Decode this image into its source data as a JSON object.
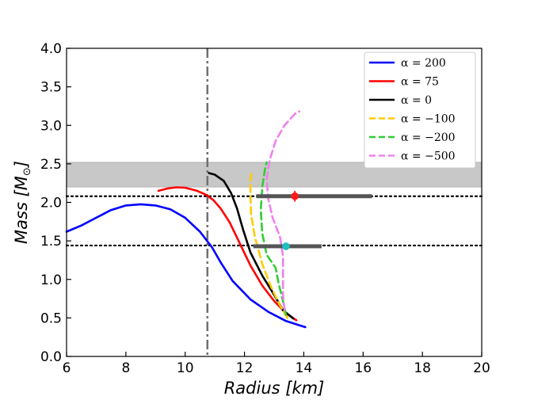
{
  "chart_data": {
    "type": "line",
    "title": "",
    "xlabel": "Radius [km]",
    "ylabel": "Mass [M",
    "ylabel_sub": "⊙",
    "ylabel_close": "]",
    "xlim": [
      6,
      20
    ],
    "ylim": [
      0.0,
      4.0
    ],
    "x_ticks": [
      6,
      8,
      10,
      12,
      14,
      16,
      18,
      20
    ],
    "y_ticks": [
      0.0,
      0.5,
      1.0,
      1.5,
      2.0,
      2.5,
      3.0,
      3.5,
      4.0
    ],
    "x_tick_labels": [
      "6",
      "8",
      "10",
      "12",
      "14",
      "16",
      "18",
      "20"
    ],
    "y_tick_labels": [
      "0.0",
      "0.5",
      "1.0",
      "1.5",
      "2.0",
      "2.5",
      "3.0",
      "3.5",
      "4.0"
    ],
    "grid": false,
    "legend_position": "top-right",
    "colors": {
      "band": "#c8c8c8",
      "vline": "#707070",
      "hline": "#000000",
      "errorbar": "#555555",
      "marker_upper": "#ff1a1a",
      "marker_lower": "#1fbfbf"
    },
    "shaded_band": {
      "y_min": 2.2,
      "y_max": 2.52
    },
    "vertical_line": {
      "x": 10.75,
      "style": "dashdot"
    },
    "horizontal_lines": [
      {
        "y": 2.08,
        "style": "dotted"
      },
      {
        "y": 1.44,
        "style": "dotted"
      }
    ],
    "observations": [
      {
        "x": 13.7,
        "y": 2.08,
        "x_err": [
          12.4,
          16.3
        ],
        "y_err": [
          2.01,
          2.15
        ],
        "marker": "upper"
      },
      {
        "x": 13.4,
        "y": 1.43,
        "x_err": [
          12.3,
          14.6
        ],
        "y_err": [
          1.4,
          1.46
        ],
        "marker": "lower"
      }
    ],
    "series": [
      {
        "name": "α = 200",
        "color": "#0000ff",
        "dash": "solid",
        "points": [
          [
            14.05,
            0.38
          ],
          [
            13.4,
            0.46
          ],
          [
            12.8,
            0.58
          ],
          [
            12.2,
            0.74
          ],
          [
            11.6,
            0.98
          ],
          [
            11.2,
            1.22
          ],
          [
            10.9,
            1.42
          ],
          [
            10.5,
            1.62
          ],
          [
            10.0,
            1.8
          ],
          [
            9.5,
            1.91
          ],
          [
            9.0,
            1.96
          ],
          [
            8.5,
            1.975
          ],
          [
            8.0,
            1.96
          ],
          [
            7.5,
            1.9
          ],
          [
            7.0,
            1.8
          ],
          [
            6.5,
            1.7
          ],
          [
            6.0,
            1.62
          ]
        ]
      },
      {
        "name": "α = 75",
        "color": "#ff0000",
        "dash": "solid",
        "points": [
          [
            13.75,
            0.47
          ],
          [
            13.4,
            0.56
          ],
          [
            13.0,
            0.72
          ],
          [
            12.6,
            0.92
          ],
          [
            12.2,
            1.18
          ],
          [
            11.8,
            1.5
          ],
          [
            11.5,
            1.74
          ],
          [
            11.2,
            1.92
          ],
          [
            10.95,
            2.03
          ],
          [
            10.7,
            2.1
          ],
          [
            10.4,
            2.15
          ],
          [
            10.0,
            2.19
          ],
          [
            9.7,
            2.195
          ],
          [
            9.4,
            2.18
          ],
          [
            9.1,
            2.15
          ]
        ]
      },
      {
        "name": "α = 0",
        "color": "#000000",
        "dash": "solid",
        "points": [
          [
            13.65,
            0.49
          ],
          [
            13.3,
            0.6
          ],
          [
            13.0,
            0.8
          ],
          [
            12.6,
            1.05
          ],
          [
            12.2,
            1.35
          ],
          [
            11.95,
            1.65
          ],
          [
            11.75,
            1.92
          ],
          [
            11.55,
            2.12
          ],
          [
            11.3,
            2.28
          ],
          [
            11.0,
            2.36
          ],
          [
            10.8,
            2.38
          ]
        ]
      },
      {
        "name": "α = −100",
        "color": "#ffcc00",
        "dash": "dashed",
        "points": [
          [
            13.45,
            0.5
          ],
          [
            13.2,
            0.66
          ],
          [
            12.9,
            0.9
          ],
          [
            12.6,
            1.2
          ],
          [
            12.35,
            1.55
          ],
          [
            12.22,
            1.85
          ],
          [
            12.2,
            2.1
          ],
          [
            12.2,
            2.3
          ],
          [
            12.25,
            2.42
          ]
        ]
      },
      {
        "name": "α = −200",
        "color": "#33cc33",
        "dash": "dashed",
        "points": [
          [
            13.4,
            0.54
          ],
          [
            13.3,
            0.72
          ],
          [
            13.15,
            0.95
          ],
          [
            13.05,
            1.15
          ],
          [
            12.75,
            1.32
          ],
          [
            12.6,
            1.6
          ],
          [
            12.55,
            1.9
          ],
          [
            12.6,
            2.2
          ],
          [
            12.7,
            2.45
          ],
          [
            12.75,
            2.52
          ]
        ]
      },
      {
        "name": "α = −500",
        "color": "#ee82ee",
        "dash": "dashed",
        "points": [
          [
            13.35,
            0.6
          ],
          [
            13.3,
            0.8
          ],
          [
            13.3,
            1.0
          ],
          [
            13.3,
            1.3
          ],
          [
            13.2,
            1.55
          ],
          [
            12.95,
            1.8
          ],
          [
            12.8,
            2.05
          ],
          [
            12.75,
            2.3
          ],
          [
            12.85,
            2.55
          ],
          [
            13.05,
            2.8
          ],
          [
            13.35,
            3.0
          ],
          [
            13.7,
            3.15
          ],
          [
            13.85,
            3.18
          ]
        ]
      }
    ]
  }
}
